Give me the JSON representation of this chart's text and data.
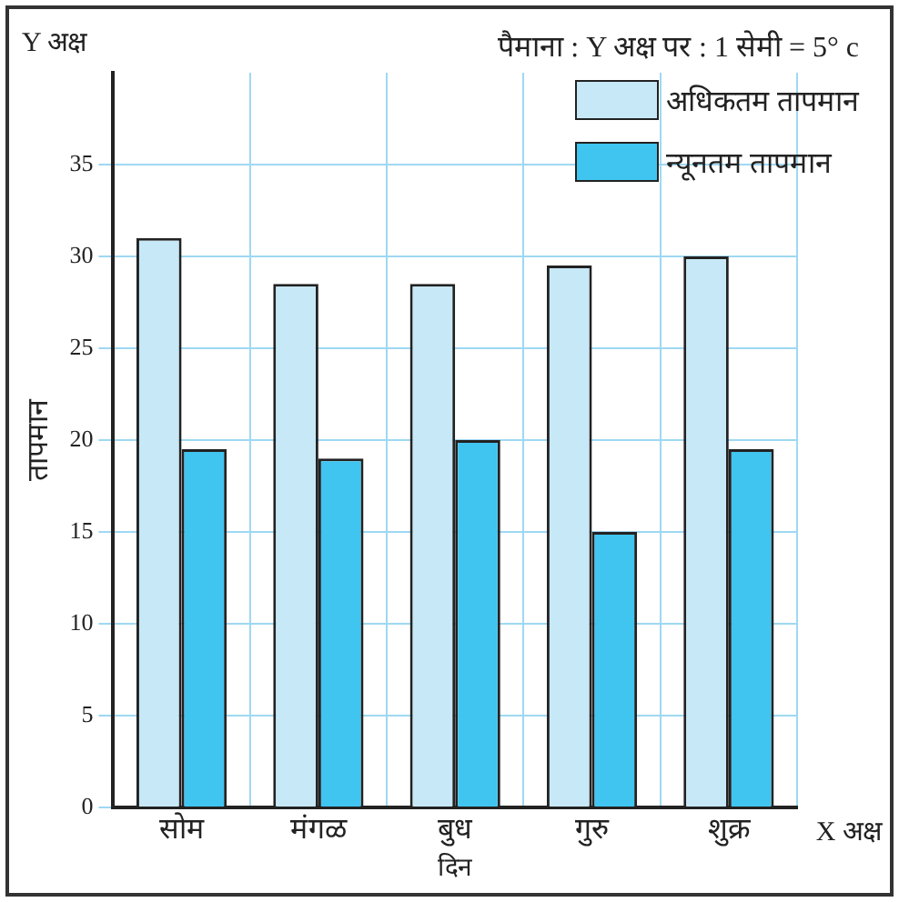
{
  "chart_data": {
    "type": "bar",
    "xlabel": "दिन",
    "ylabel": "तापमान",
    "annotations": [
      "पैमाना : Y अक्ष पर : 1 सेमी = 5° c",
      "Y अक्ष",
      "X अक्ष"
    ],
    "categories": [
      "सोम",
      "मंगळ",
      "बुध",
      "गुरु",
      "शुक्र"
    ],
    "series": [
      {
        "name": "अधिकतम तापमान",
        "color": "#c6e8f7",
        "values": [
          31,
          28.5,
          28.5,
          29.5,
          30
        ]
      },
      {
        "name": "न्यूनतम तापमान",
        "color": "#40c4f0",
        "values": [
          19.5,
          19,
          20,
          15,
          19.5
        ]
      }
    ],
    "ylim": [
      0,
      40
    ],
    "yticks": [
      0,
      5,
      10,
      15,
      20,
      25,
      30,
      35
    ],
    "grid": true,
    "legend": "top right"
  }
}
